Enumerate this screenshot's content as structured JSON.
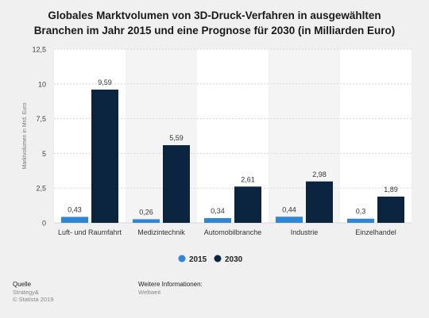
{
  "title_line1": "Globales Marktvolumen von 3D-Druck-Verfahren in ausgewählten",
  "title_line2": "Branchen im Jahr 2015 und eine Prognose für 2030 (in Milliarden Euro)",
  "chart_data": {
    "type": "bar",
    "categories": [
      "Luft- und Raumfahrt",
      "Medizintechnik",
      "Automobilbranche",
      "Industrie",
      "Einzelhandel"
    ],
    "series": [
      {
        "name": "2015",
        "values": [
          0.43,
          0.26,
          0.34,
          0.44,
          0.3
        ],
        "labels": [
          "0,43",
          "0,26",
          "0,34",
          "0,44",
          "0,3"
        ],
        "color": "#2e86d9"
      },
      {
        "name": "2030",
        "values": [
          9.59,
          5.59,
          2.61,
          2.98,
          1.89
        ],
        "labels": [
          "9,59",
          "5,59",
          "2,61",
          "2,98",
          "1,89"
        ],
        "color": "#0b2440"
      }
    ],
    "ylabel": "Marktvolumen in Mrd. Euro",
    "ylim": [
      0,
      12.5
    ],
    "yticks": [
      0,
      2.5,
      5,
      7.5,
      10,
      12.5
    ],
    "ytick_labels": [
      "0",
      "2,5",
      "5",
      "7,5",
      "10",
      "12,5"
    ],
    "legend_position": "bottom",
    "grid": true
  },
  "footer": {
    "source_label": "Quelle",
    "source_lines": [
      "Strategy&",
      "© Statista 2019"
    ],
    "info_label": "Weitere Informationen:",
    "info_value": "Weltweit"
  },
  "colors": {
    "background": "#f0f0f0",
    "plot_band_light": "#ffffff",
    "plot_band_alt": "#f4f4f4",
    "series_2015": "#2e86d9",
    "series_2030": "#0b2440"
  }
}
